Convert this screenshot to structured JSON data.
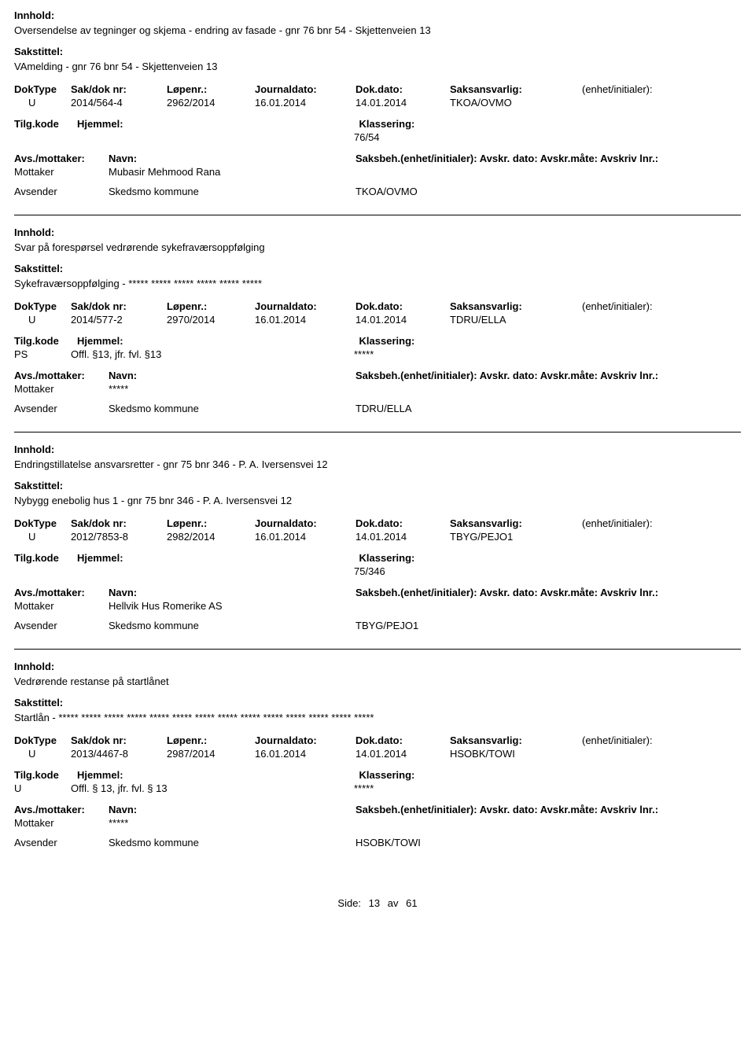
{
  "labels": {
    "innhold": "Innhold:",
    "sakstittel": "Sakstittel:",
    "doktype": "DokType",
    "sakdok": "Sak/dok nr:",
    "lopenr": "Løpenr.:",
    "journaldato": "Journaldato:",
    "dokdato": "Dok.dato:",
    "saksansvarlig": "Saksansvarlig:",
    "enhet": "(enhet/initialer):",
    "tilgkode": "Tilg.kode",
    "hjemmel": "Hjemmel:",
    "klassering": "Klassering:",
    "avsmottaker": "Avs./mottaker:",
    "navn": "Navn:",
    "saksbeh_line": "Saksbeh.(enhet/initialer): Avskr. dato:  Avskr.måte:  Avskriv lnr.:",
    "mottaker": "Mottaker",
    "avsender": "Avsender",
    "side": "Side:",
    "av": "av"
  },
  "page": {
    "current": "13",
    "total": "61"
  },
  "entries": [
    {
      "innhold": "Oversendelse av  tegninger og skjema - endring av fasade - gnr 76 bnr 54 - Skjettenveien 13",
      "sakstittel": "VAmelding - gnr 76 bnr 54 - Skjettenveien 13",
      "doktype": "U",
      "sakdok": "2014/564-4",
      "lopenr": "2962/2014",
      "journaldato": "16.01.2014",
      "dokdato": "14.01.2014",
      "saksansvarlig": "TKOA/OVMO",
      "tilgkode": "",
      "hjemmel": "",
      "klassering": "76/54",
      "mottaker_navn": "Mubasir Mehmood Rana",
      "avsender_navn": "Skedsmo kommune",
      "avsender_extra": "TKOA/OVMO"
    },
    {
      "innhold": "Svar på forespørsel vedrørende sykefraværsoppfølging",
      "sakstittel": "Sykefraværsoppfølging - ***** ***** ***** ***** ***** *****",
      "doktype": "U",
      "sakdok": "2014/577-2",
      "lopenr": "2970/2014",
      "journaldato": "16.01.2014",
      "dokdato": "14.01.2014",
      "saksansvarlig": "TDRU/ELLA",
      "tilgkode": "PS",
      "hjemmel": "Offl. §13, jfr. fvl. §13",
      "klassering": "*****",
      "mottaker_navn": "*****",
      "avsender_navn": "Skedsmo kommune",
      "avsender_extra": "TDRU/ELLA"
    },
    {
      "innhold": "Endringstillatelse ansvarsretter - gnr 75 bnr 346 - P. A. Iversensvei 12",
      "sakstittel": "Nybygg enebolig hus 1 - gnr 75 bnr 346 - P. A. Iversensvei 12",
      "doktype": "U",
      "sakdok": "2012/7853-8",
      "lopenr": "2982/2014",
      "journaldato": "16.01.2014",
      "dokdato": "14.01.2014",
      "saksansvarlig": "TBYG/PEJO1",
      "tilgkode": "",
      "hjemmel": "",
      "klassering": "75/346",
      "mottaker_navn": "Hellvik Hus Romerike AS",
      "avsender_navn": "Skedsmo kommune",
      "avsender_extra": "TBYG/PEJO1"
    },
    {
      "innhold": "Vedrørende restanse på startlånet",
      "sakstittel": "Startlån - ***** ***** ***** ***** ***** ***** ***** ***** ***** ***** ***** ***** ***** *****",
      "doktype": "U",
      "sakdok": "2013/4467-8",
      "lopenr": "2987/2014",
      "journaldato": "16.01.2014",
      "dokdato": "14.01.2014",
      "saksansvarlig": "HSOBK/TOWI",
      "tilgkode": "U",
      "hjemmel": "Offl. § 13, jfr. fvl. § 13",
      "klassering": "*****",
      "mottaker_navn": "*****",
      "avsender_navn": "Skedsmo kommune",
      "avsender_extra": "HSOBK/TOWI"
    }
  ]
}
